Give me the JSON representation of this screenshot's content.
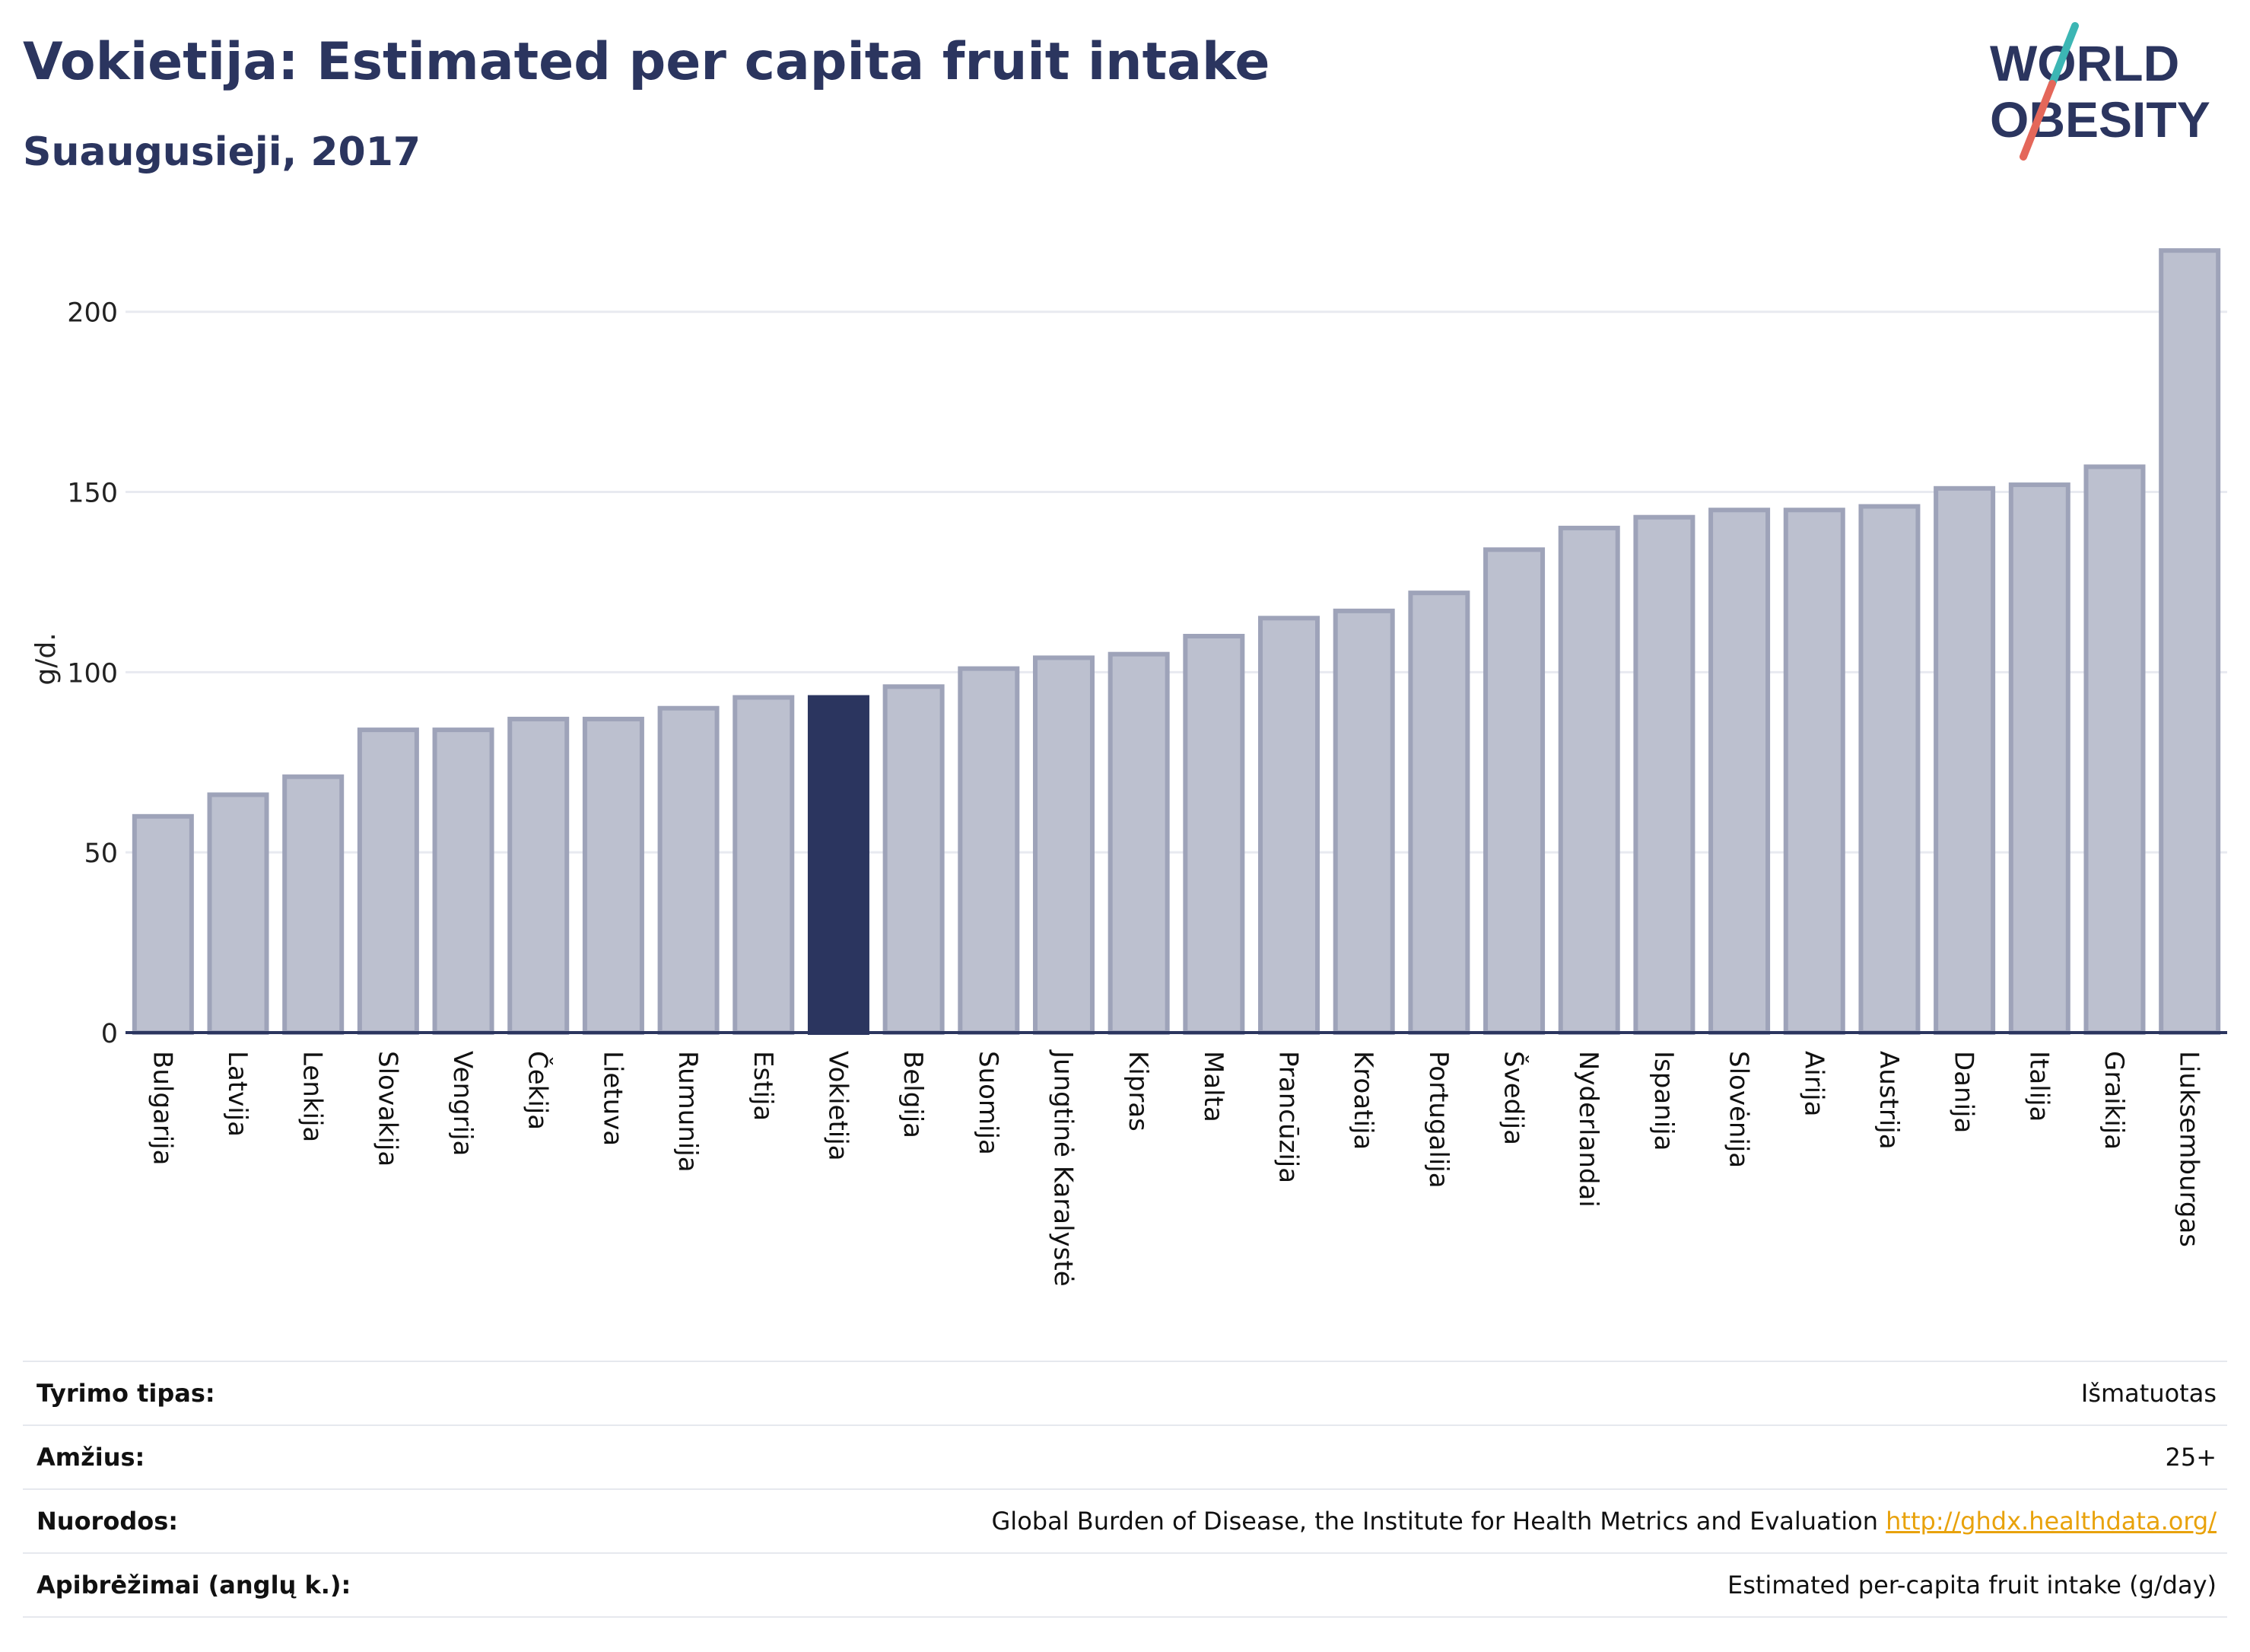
{
  "header": {
    "title": "Vokietija: Estimated per capita fruit intake",
    "subtitle": "Suaugusieji, 2017",
    "logo": {
      "line1": "WORLD",
      "line2": "OBESITY"
    }
  },
  "chart_data": {
    "type": "bar",
    "ylabel": "g/d.",
    "xlabel": "",
    "ylim": [
      0,
      220
    ],
    "yticks": [
      0,
      50,
      100,
      150,
      200
    ],
    "grid": true,
    "highlight": "Vokietija",
    "colors": {
      "bar": "#bcc0cf",
      "bar_border": "#9ea3b9",
      "highlight": "#2b355f",
      "grid": "#e8eaf0",
      "axis": "#2b355f"
    },
    "categories": [
      "Bulgarija",
      "Latvija",
      "Lenkija",
      "Slovakija",
      "Vengrija",
      "Čekija",
      "Lietuva",
      "Rumunija",
      "Estija",
      "Vokietija",
      "Belgija",
      "Suomija",
      "Jungtinė Karalystė",
      "Kipras",
      "Malta",
      "Prancūzija",
      "Kroatija",
      "Portugalija",
      "Švedija",
      "Nyderlandai",
      "Ispanija",
      "Slovėnija",
      "Airija",
      "Austrija",
      "Danija",
      "Italija",
      "Graikija",
      "Liuksemburgas"
    ],
    "values": [
      60,
      66,
      71,
      84,
      84,
      87,
      87,
      90,
      93,
      93,
      96,
      101,
      104,
      105,
      110,
      115,
      117,
      122,
      134,
      140,
      143,
      145,
      145,
      146,
      151,
      152,
      157,
      217
    ]
  },
  "meta": [
    {
      "key": "Tyrimo tipas:",
      "value": "Išmatuotas"
    },
    {
      "key": "Amžius:",
      "value": "25+"
    },
    {
      "key": "Nuorodos:",
      "value": "Global Burden of Disease, the Institute for Health Metrics and Evaluation",
      "link": "http://ghdx.healthdata.org/"
    },
    {
      "key": "Apibrėžimai (anglų k.):",
      "value": "Estimated per-capita fruit intake (g/day)"
    }
  ]
}
